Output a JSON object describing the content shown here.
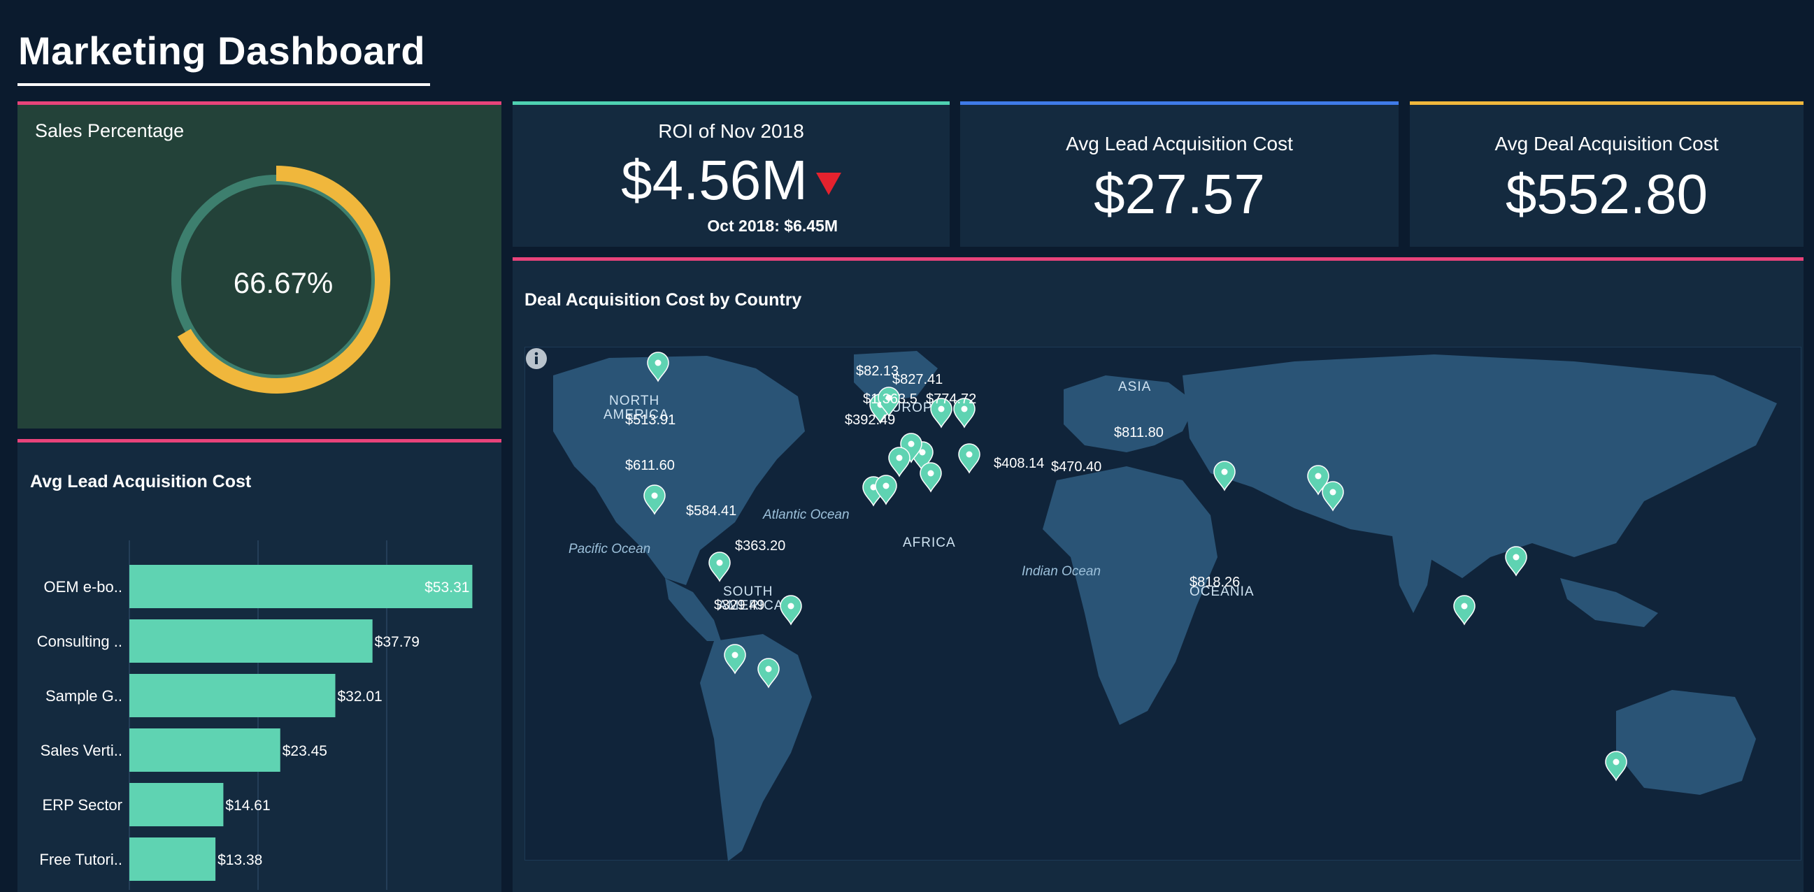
{
  "page": {
    "title": "Marketing Dashboard"
  },
  "sales": {
    "label": "Sales Percentage",
    "value_text": "66.67%",
    "fraction": 0.6667,
    "colors": {
      "fill": "#f0b73c",
      "track": "#3d7f6e"
    }
  },
  "kpis": {
    "roi": {
      "title": "ROI of Nov 2018",
      "value": "$4.56M",
      "previous": "Oct 2018: $6.45M",
      "trend": "down",
      "trend_icon": "down-triangle-icon",
      "trend_color": "#e5222e"
    },
    "lead": {
      "title": "Avg Lead Acquisition Cost",
      "value": "$27.57"
    },
    "deal": {
      "title": "Avg Deal Acquisition Cost",
      "value": "$552.80"
    }
  },
  "map": {
    "title": "Deal Acquisition Cost by Country",
    "region_labels": [
      "NORTH",
      "AMERICA",
      "SOUTH",
      "AMERICA",
      "EUROPE",
      "AFRICA",
      "ASIA",
      "OCEANIA"
    ],
    "ocean_labels": [
      "Pacific Ocean",
      "Atlantic Ocean",
      "Indian Ocean"
    ],
    "marker_labels": [
      "$82.13",
      "$827.41",
      "$1,363.5",
      "$774.72",
      "$392.49",
      "$513.91",
      "$611.60",
      "$584.41",
      "$363.20",
      "$329.49",
      "$408.14",
      "$470.40",
      "$811.80",
      "$818.26"
    ],
    "marker_color": "#5fd3b2",
    "info_icon": "info-icon"
  },
  "chart_data": {
    "type": "bar",
    "orientation": "horizontal",
    "title": "Avg Lead Acquisition Cost",
    "categories": [
      "OEM e-bo..",
      "Consulting ..",
      "Sample G..",
      "Sales Verti..",
      "ERP Sector",
      "Free Tutori.."
    ],
    "values": [
      53.31,
      37.79,
      32.01,
      23.45,
      14.61,
      13.38
    ],
    "value_labels": [
      "$53.31",
      "$37.79",
      "$32.01",
      "$23.45",
      "$14.61",
      "$13.38"
    ],
    "xlim": [
      0,
      60
    ],
    "grid": true,
    "bar_color": "#5fd3b2"
  }
}
